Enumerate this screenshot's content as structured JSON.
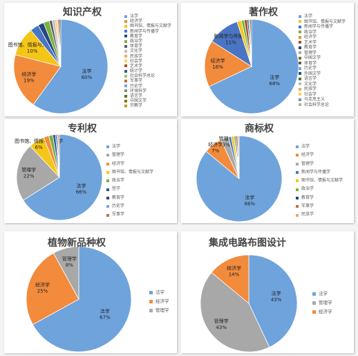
{
  "colors": {
    "法学": "#6fa3dc",
    "经济学": "#f28b3c",
    "管理学": "#a8a8a8",
    "图书馆、情报与文献学": "#f5c518",
    "新闻学与传播学": "#4a75c4",
    "政治学": "#79b23c",
    "教育学": "#26477d",
    "艺术学": "#9a5527",
    "体育学": "#5a5a5a",
    "中国文学": "#8b7019",
    "外国文学": "#1f4e8c",
    "语言学": "#4f7a22",
    "历史学": "#7ea5d8",
    "民族学": "#f4a66a",
    "文化学": "#c0c0c0",
    "社会学": "#ffd24d",
    "马克思主义": "#6f8fcf",
    "社会科学总论": "#93c76a",
    "统计学": "#3a5a90",
    "军事学": "#c2703a",
    "环境科学": "#888888",
    "宗教学": "#c09a20",
    "哲学": "#2f5597"
  },
  "chart_data": [
    {
      "type": "pie",
      "title": "知识产权",
      "slices": [
        {
          "label": "法学",
          "value": 60,
          "text": "60%"
        },
        {
          "label": "经济学",
          "value": 19,
          "text": "19%"
        },
        {
          "label": "图书馆、情报与文献学",
          "value": 10,
          "text": "10%"
        },
        {
          "label": "新闻学与传播学",
          "value": 3
        },
        {
          "label": "教育学",
          "value": 2
        },
        {
          "label": "政治学",
          "value": 2
        },
        {
          "label": "体育学",
          "value": 1
        },
        {
          "label": "文化学",
          "value": 1
        },
        {
          "label": "民族学",
          "value": 0.5
        },
        {
          "label": "社会学",
          "value": 0.5
        },
        {
          "label": "艺术学",
          "value": 0.5
        },
        {
          "label": "统计学",
          "value": 0.5
        }
      ],
      "legend": [
        "法学",
        "经济学",
        "图书馆、情报与文献学",
        "新闻学与传播学",
        "教育学",
        "政治学",
        "体育学",
        "文化学",
        "民族学",
        "社会学",
        "艺术学",
        "统计学",
        "社会科学总论",
        "军事学",
        "历史学",
        "环境科学",
        "语言学",
        "中国文学",
        "宗教学"
      ]
    },
    {
      "type": "pie",
      "title": "著作权",
      "slices": [
        {
          "label": "法学",
          "value": 68,
          "text": "68%"
        },
        {
          "label": "经济学",
          "value": 16,
          "text": "16%"
        },
        {
          "label": "新闻学与传播学",
          "value": 11,
          "text": "11%"
        },
        {
          "label": "图书馆、情报与文献学",
          "value": 1.5
        },
        {
          "label": "政治学",
          "value": 1
        },
        {
          "label": "艺术学",
          "value": 1
        },
        {
          "label": "教育学",
          "value": 0.5
        },
        {
          "label": "管理学",
          "value": 0.5
        },
        {
          "label": "体育学",
          "value": 0.5
        }
      ],
      "legend": [
        "法学",
        "图书馆、情报与文献学",
        "新闻学与传播学",
        "政治学",
        "经济学",
        "艺术学",
        "教育学",
        "管理学",
        "中国文学",
        "体育学",
        "历史学",
        "外国文学",
        "语言学",
        "文化学",
        "民族学",
        "社会学",
        "马克思主义",
        "社会科学总论"
      ]
    },
    {
      "type": "pie",
      "title": "专利权",
      "slices": [
        {
          "label": "法学",
          "value": 66,
          "text": "66%"
        },
        {
          "label": "管理学",
          "value": 22,
          "text": "22%"
        },
        {
          "label": "图书馆、情报与文献学",
          "value": 6,
          "text": "6%"
        },
        {
          "label": "经济学",
          "value": 2
        },
        {
          "label": "政治学",
          "value": 1.5
        },
        {
          "label": "哲学",
          "value": 1
        },
        {
          "label": "教育学",
          "value": 0.5
        },
        {
          "label": "历史学",
          "value": 0.5
        },
        {
          "label": "军事学",
          "value": 0.5
        }
      ],
      "legend": [
        "法学",
        "管理学",
        "经济学",
        "图书馆、情报与文献学",
        "政治学",
        "哲学",
        "教育学",
        "历史学",
        "军事学"
      ]
    },
    {
      "type": "pie",
      "title": "商标权",
      "slices": [
        {
          "label": "法学",
          "value": 86,
          "text": "86%"
        },
        {
          "label": "经济学",
          "value": 7,
          "text": "7%"
        },
        {
          "label": "管理学",
          "value": 3,
          "text": "3%"
        },
        {
          "label": "新闻学与传播学",
          "value": 1
        },
        {
          "label": "图书馆、情报与文献学",
          "value": 1
        },
        {
          "label": "政治学",
          "value": 0.5
        },
        {
          "label": "教育学",
          "value": 0.5
        },
        {
          "label": "军事学",
          "value": 0.5
        },
        {
          "label": "民族学",
          "value": 0.5
        }
      ],
      "legend": [
        "法学",
        "经济学",
        "管理学",
        "新闻学与传播学",
        "图书馆、情报与文献学",
        "政治学",
        "教育学",
        "军事学",
        "民族学"
      ]
    },
    {
      "type": "pie",
      "title": "植物新品种权",
      "slices": [
        {
          "label": "法学",
          "value": 67,
          "text": "67%"
        },
        {
          "label": "经济学",
          "value": 25,
          "text": "25%"
        },
        {
          "label": "管理学",
          "value": 8,
          "text": "8%"
        }
      ],
      "legend": [
        "法学",
        "经济学",
        "管理学"
      ]
    },
    {
      "type": "pie",
      "title": "集成电路布图设计",
      "slices": [
        {
          "label": "法学",
          "value": 43,
          "text": "43%"
        },
        {
          "label": "管理学",
          "value": 43,
          "text": "43%"
        },
        {
          "label": "经济学",
          "value": 14,
          "text": "14%"
        }
      ],
      "legend": [
        "法学",
        "管理学",
        "经济学"
      ]
    }
  ]
}
